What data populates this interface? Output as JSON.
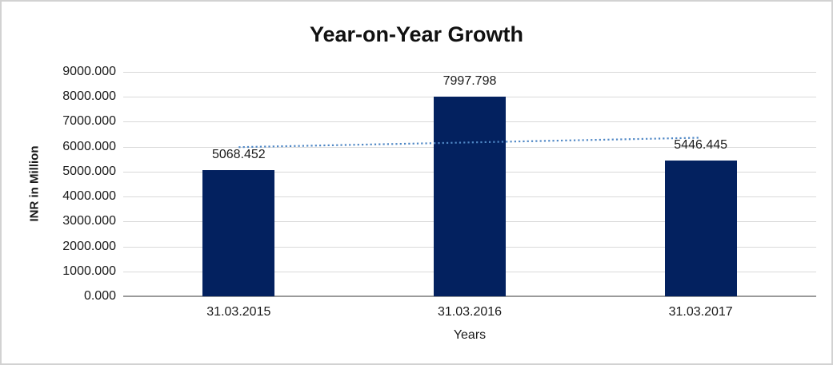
{
  "page": {
    "background": "#ffffff",
    "border_color": "#d2d2d2"
  },
  "chart_data": {
    "type": "bar",
    "title": "Year-on-Year Growth",
    "categories": [
      "31.03.2015",
      "31.03.2016",
      "31.03.2017"
    ],
    "values": [
      5068.452,
      7997.798,
      5446.445
    ],
    "data_labels": [
      "5068.452",
      "7997.798",
      "5446.445"
    ],
    "xlabel": "Years",
    "ylabel": "INR in Million",
    "ylim": [
      0,
      9000
    ],
    "ytick_step": 1000,
    "ytick_labels": [
      "0.000",
      "1000.000",
      "2000.000",
      "3000.000",
      "4000.000",
      "5000.000",
      "6000.000",
      "7000.000",
      "8000.000",
      "9000.000"
    ],
    "grid": true,
    "legend_position": "none",
    "bar_color": "#03215f",
    "gridline_color": "#d9d9d9",
    "axis_line_color": "#9a9a9a",
    "text_color": "#1a1a1a",
    "trendline": {
      "type": "linear",
      "style": "dotted",
      "color": "#4f87c5"
    }
  }
}
